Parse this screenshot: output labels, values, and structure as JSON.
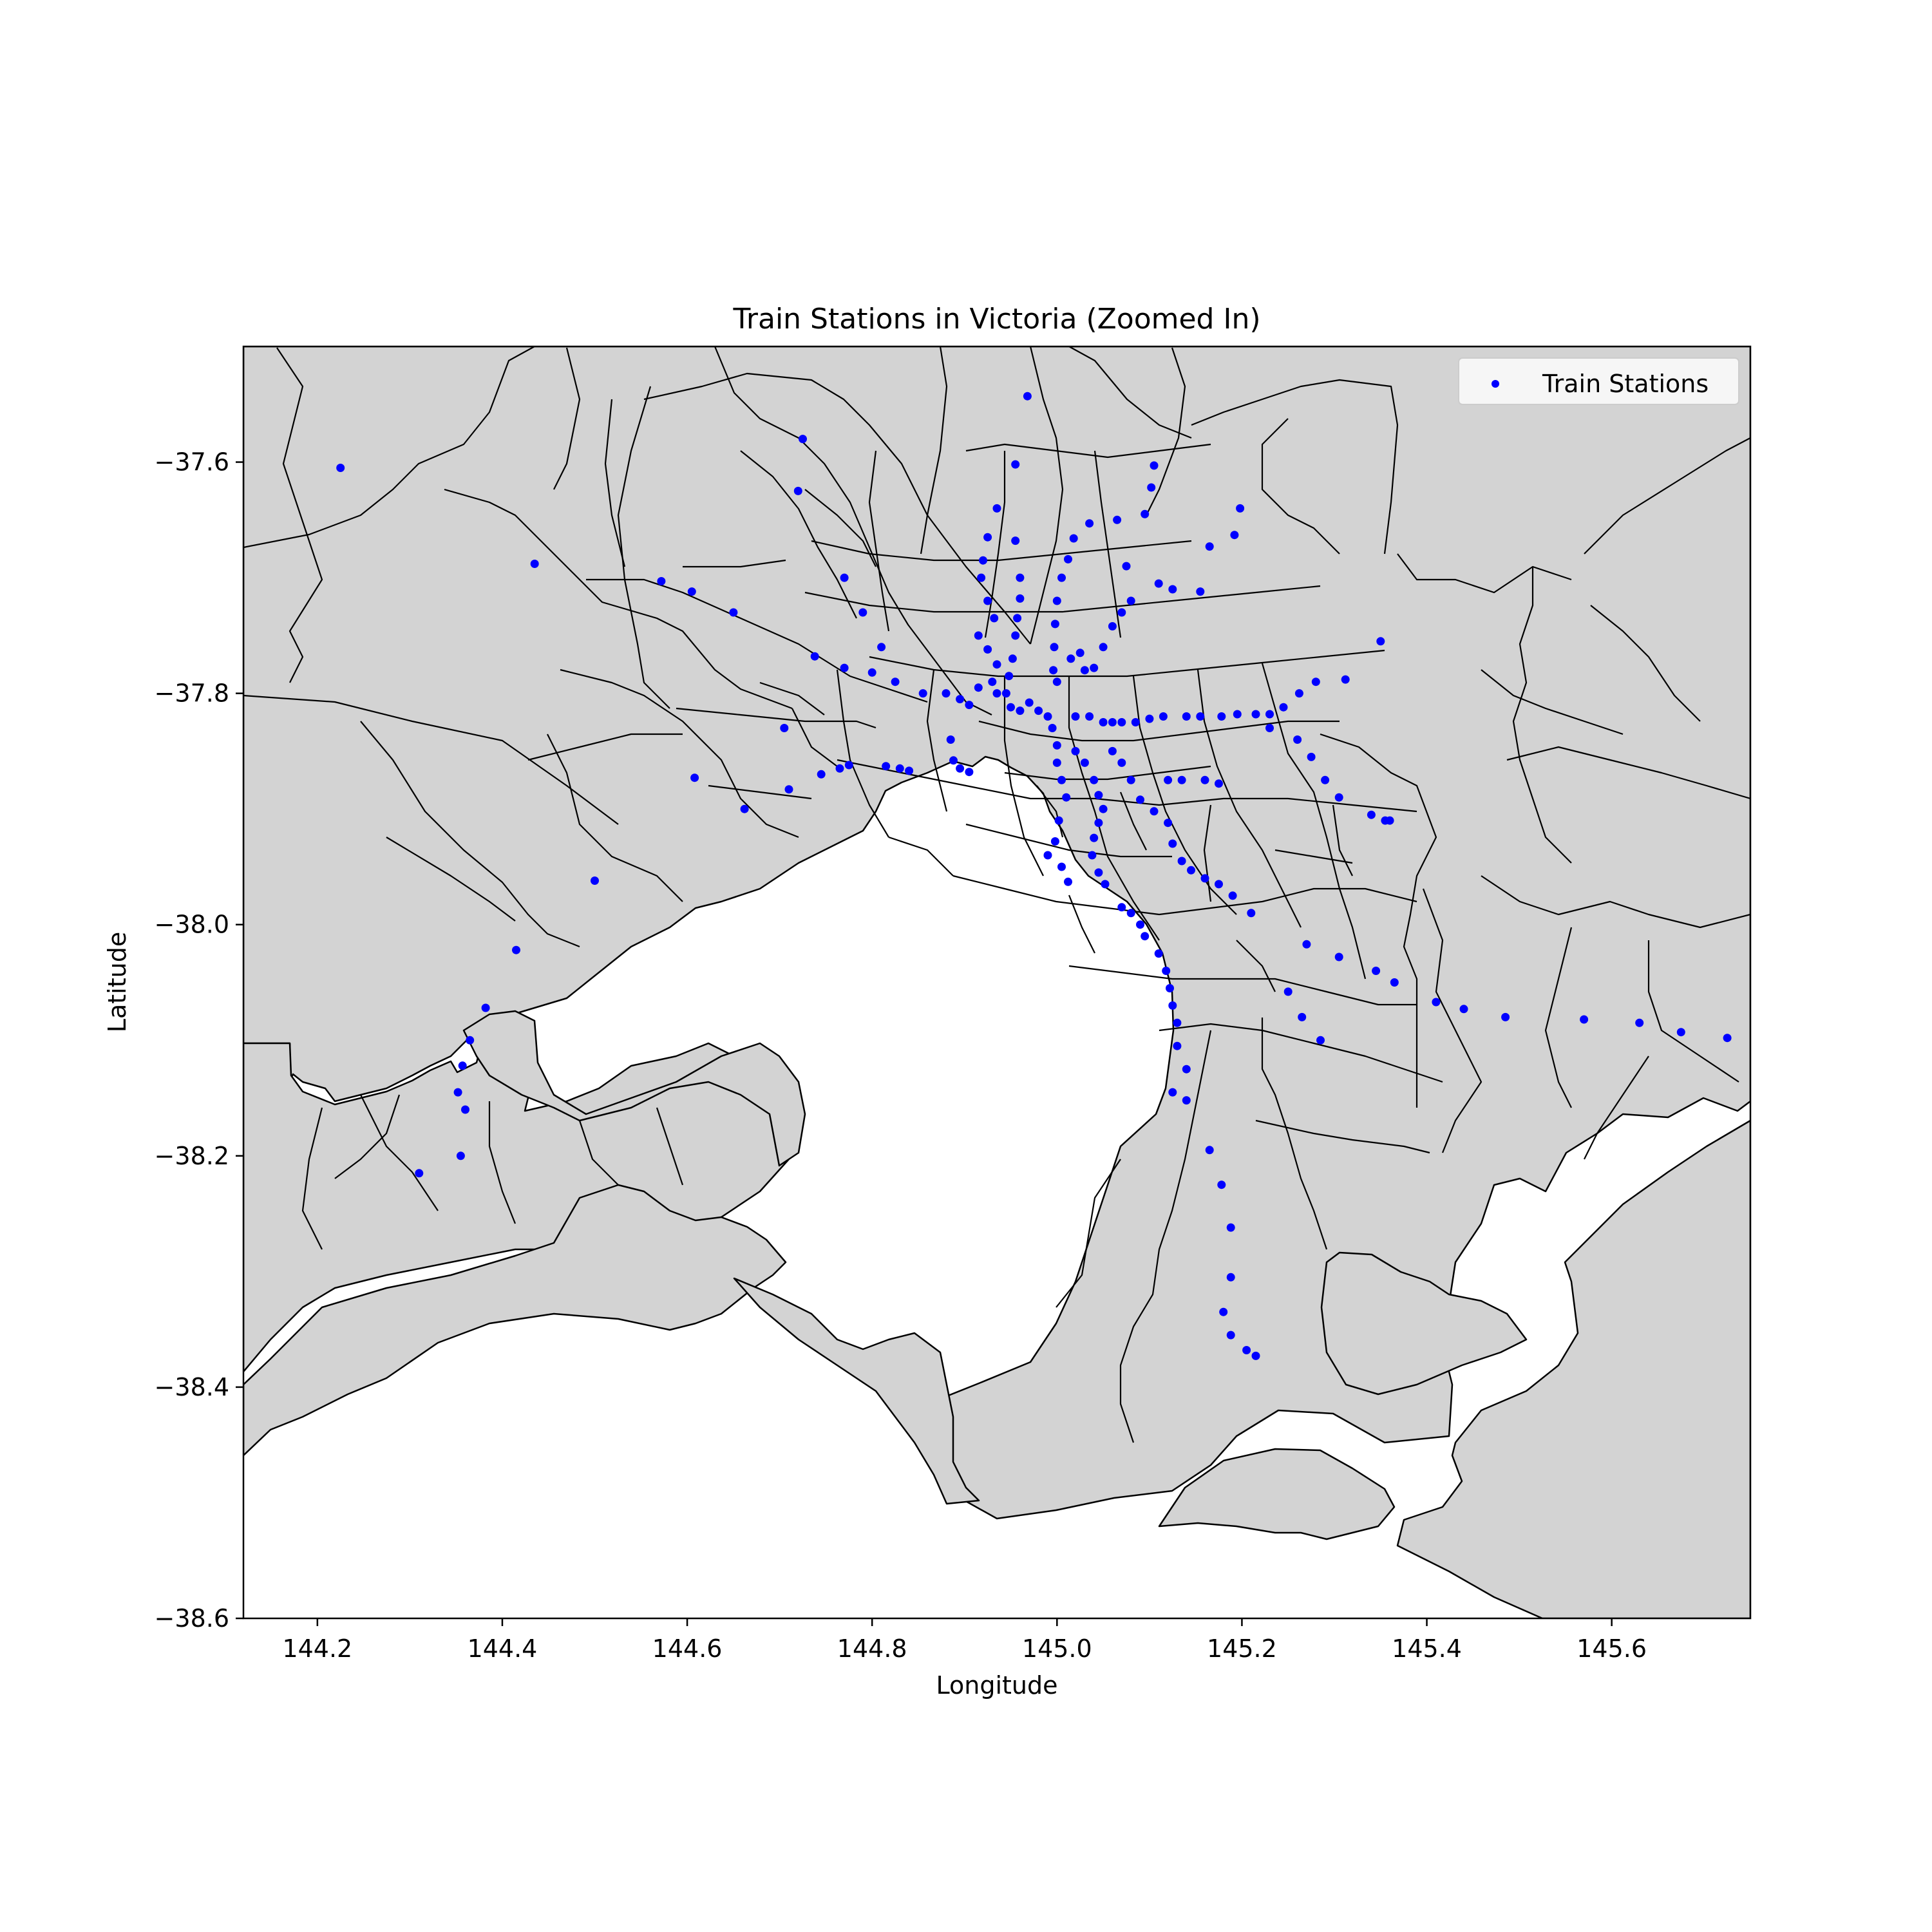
{
  "chart_data": {
    "type": "scatter",
    "title": "Train Stations in Victoria (Zoomed In)",
    "xlabel": "Longitude",
    "ylabel": "Latitude",
    "xlim": [
      144.12,
      145.75
    ],
    "ylim": [
      -38.6,
      -37.5
    ],
    "xticks": [
      144.2,
      144.4,
      144.6,
      144.8,
      145.0,
      145.2,
      145.4,
      145.6
    ],
    "xtick_labels": [
      "144.2",
      "144.4",
      "144.6",
      "144.8",
      "145.0",
      "145.2",
      "145.4",
      "145.6"
    ],
    "yticks": [
      -37.6,
      -37.8,
      -38.0,
      -38.2,
      -38.4,
      -38.6
    ],
    "ytick_labels": [
      "−37.6",
      "−37.8",
      "−38.0",
      "−38.2",
      "−38.4",
      "−38.6"
    ],
    "grid": false,
    "legend_position": "upper right",
    "land_color": "#d3d3d3",
    "boundary_color": "#000000",
    "series": [
      {
        "name": "Train Stations",
        "color": "#0000ff",
        "points": [
          [
            144.225,
            -37.605
          ],
          [
            144.435,
            -37.688
          ],
          [
            144.572,
            -37.703
          ],
          [
            144.605,
            -37.712
          ],
          [
            144.65,
            -37.73
          ],
          [
            144.725,
            -37.58
          ],
          [
            144.72,
            -37.625
          ],
          [
            144.77,
            -37.7
          ],
          [
            144.79,
            -37.73
          ],
          [
            144.738,
            -37.768
          ],
          [
            144.77,
            -37.778
          ],
          [
            144.8,
            -37.782
          ],
          [
            144.81,
            -37.76
          ],
          [
            144.825,
            -37.79
          ],
          [
            144.855,
            -37.8
          ],
          [
            144.88,
            -37.8
          ],
          [
            144.895,
            -37.805
          ],
          [
            144.905,
            -37.81
          ],
          [
            144.915,
            -37.795
          ],
          [
            144.935,
            -37.8
          ],
          [
            144.95,
            -37.812
          ],
          [
            144.96,
            -37.815
          ],
          [
            144.97,
            -37.808
          ],
          [
            144.98,
            -37.815
          ],
          [
            144.99,
            -37.82
          ],
          [
            144.705,
            -37.83
          ],
          [
            144.608,
            -37.873
          ],
          [
            144.662,
            -37.9
          ],
          [
            144.71,
            -37.883
          ],
          [
            144.745,
            -37.87
          ],
          [
            144.765,
            -37.865
          ],
          [
            144.775,
            -37.862
          ],
          [
            144.815,
            -37.863
          ],
          [
            144.83,
            -37.865
          ],
          [
            144.84,
            -37.867
          ],
          [
            144.885,
            -37.84
          ],
          [
            144.888,
            -37.858
          ],
          [
            144.895,
            -37.865
          ],
          [
            144.905,
            -37.868
          ],
          [
            144.5,
            -37.962
          ],
          [
            144.415,
            -38.022
          ],
          [
            144.382,
            -38.072
          ],
          [
            144.365,
            -38.1
          ],
          [
            144.357,
            -38.122
          ],
          [
            144.352,
            -38.145
          ],
          [
            144.36,
            -38.16
          ],
          [
            144.355,
            -38.2
          ],
          [
            144.31,
            -38.215
          ],
          [
            144.968,
            -37.543
          ],
          [
            144.955,
            -37.602
          ],
          [
            144.935,
            -37.64
          ],
          [
            144.955,
            -37.668
          ],
          [
            144.925,
            -37.665
          ],
          [
            144.92,
            -37.685
          ],
          [
            144.918,
            -37.7
          ],
          [
            144.925,
            -37.72
          ],
          [
            144.932,
            -37.735
          ],
          [
            144.915,
            -37.75
          ],
          [
            144.925,
            -37.762
          ],
          [
            144.935,
            -37.775
          ],
          [
            144.93,
            -37.79
          ],
          [
            144.96,
            -37.7
          ],
          [
            144.96,
            -37.718
          ],
          [
            144.957,
            -37.735
          ],
          [
            144.955,
            -37.75
          ],
          [
            144.952,
            -37.77
          ],
          [
            144.948,
            -37.785
          ],
          [
            144.945,
            -37.8
          ],
          [
            145.018,
            -37.666
          ],
          [
            145.012,
            -37.684
          ],
          [
            145.005,
            -37.7
          ],
          [
            145.0,
            -37.72
          ],
          [
            144.998,
            -37.74
          ],
          [
            144.997,
            -37.76
          ],
          [
            144.996,
            -37.78
          ],
          [
            145.0,
            -37.79
          ],
          [
            145.015,
            -37.77
          ],
          [
            145.025,
            -37.765
          ],
          [
            145.04,
            -37.778
          ],
          [
            145.035,
            -37.653
          ],
          [
            145.065,
            -37.65
          ],
          [
            145.095,
            -37.645
          ],
          [
            145.102,
            -37.622
          ],
          [
            145.105,
            -37.603
          ],
          [
            145.075,
            -37.69
          ],
          [
            145.11,
            -37.705
          ],
          [
            145.125,
            -37.71
          ],
          [
            145.155,
            -37.712
          ],
          [
            145.165,
            -37.673
          ],
          [
            145.192,
            -37.663
          ],
          [
            145.198,
            -37.64
          ],
          [
            145.06,
            -37.742
          ],
          [
            145.07,
            -37.73
          ],
          [
            145.08,
            -37.72
          ],
          [
            145.05,
            -37.76
          ],
          [
            145.03,
            -37.78
          ],
          [
            145.02,
            -37.82
          ],
          [
            145.035,
            -37.82
          ],
          [
            145.05,
            -37.825
          ],
          [
            145.06,
            -37.825
          ],
          [
            145.07,
            -37.825
          ],
          [
            145.085,
            -37.825
          ],
          [
            145.1,
            -37.822
          ],
          [
            145.115,
            -37.82
          ],
          [
            145.14,
            -37.82
          ],
          [
            145.155,
            -37.82
          ],
          [
            145.178,
            -37.82
          ],
          [
            145.195,
            -37.818
          ],
          [
            145.215,
            -37.818
          ],
          [
            145.23,
            -37.818
          ],
          [
            145.245,
            -37.812
          ],
          [
            145.262,
            -37.8
          ],
          [
            145.28,
            -37.79
          ],
          [
            145.312,
            -37.788
          ],
          [
            145.35,
            -37.755
          ],
          [
            145.26,
            -37.84
          ],
          [
            145.275,
            -37.855
          ],
          [
            145.29,
            -37.875
          ],
          [
            145.305,
            -37.89
          ],
          [
            145.34,
            -37.905
          ],
          [
            145.355,
            -37.91
          ],
          [
            145.36,
            -37.91
          ],
          [
            145.23,
            -37.83
          ],
          [
            145.12,
            -37.875
          ],
          [
            145.135,
            -37.875
          ],
          [
            145.16,
            -37.875
          ],
          [
            145.175,
            -37.878
          ],
          [
            144.995,
            -37.83
          ],
          [
            145.0,
            -37.845
          ],
          [
            145.0,
            -37.86
          ],
          [
            145.005,
            -37.875
          ],
          [
            145.01,
            -37.89
          ],
          [
            145.002,
            -37.91
          ],
          [
            144.998,
            -37.928
          ],
          [
            144.99,
            -37.94
          ],
          [
            145.005,
            -37.95
          ],
          [
            145.012,
            -37.963
          ],
          [
            145.02,
            -37.85
          ],
          [
            145.03,
            -37.86
          ],
          [
            145.04,
            -37.875
          ],
          [
            145.045,
            -37.888
          ],
          [
            145.05,
            -37.9
          ],
          [
            145.045,
            -37.912
          ],
          [
            145.04,
            -37.925
          ],
          [
            145.038,
            -37.94
          ],
          [
            145.045,
            -37.955
          ],
          [
            145.052,
            -37.965
          ],
          [
            145.06,
            -37.85
          ],
          [
            145.07,
            -37.86
          ],
          [
            145.08,
            -37.875
          ],
          [
            145.09,
            -37.892
          ],
          [
            145.105,
            -37.902
          ],
          [
            145.12,
            -37.912
          ],
          [
            145.125,
            -37.93
          ],
          [
            145.135,
            -37.945
          ],
          [
            145.145,
            -37.953
          ],
          [
            145.16,
            -37.96
          ],
          [
            145.175,
            -37.965
          ],
          [
            145.19,
            -37.975
          ],
          [
            145.21,
            -37.99
          ],
          [
            145.07,
            -37.985
          ],
          [
            145.08,
            -37.99
          ],
          [
            145.09,
            -38.0
          ],
          [
            145.095,
            -38.01
          ],
          [
            145.11,
            -38.025
          ],
          [
            145.118,
            -38.04
          ],
          [
            145.122,
            -38.055
          ],
          [
            145.125,
            -38.07
          ],
          [
            145.13,
            -38.085
          ],
          [
            145.13,
            -38.105
          ],
          [
            145.14,
            -38.125
          ],
          [
            145.125,
            -38.145
          ],
          [
            145.14,
            -38.152
          ],
          [
            145.165,
            -38.195
          ],
          [
            145.178,
            -38.225
          ],
          [
            145.188,
            -38.262
          ],
          [
            145.188,
            -38.305
          ],
          [
            145.18,
            -38.335
          ],
          [
            145.188,
            -38.355
          ],
          [
            145.205,
            -38.368
          ],
          [
            145.215,
            -38.373
          ],
          [
            145.27,
            -38.017
          ],
          [
            145.25,
            -38.058
          ],
          [
            145.265,
            -38.08
          ],
          [
            145.285,
            -38.1
          ],
          [
            145.305,
            -38.028
          ],
          [
            145.345,
            -38.04
          ],
          [
            145.365,
            -38.05
          ],
          [
            145.41,
            -38.067
          ],
          [
            145.44,
            -38.073
          ],
          [
            145.485,
            -38.08
          ],
          [
            145.57,
            -38.082
          ],
          [
            145.63,
            -38.085
          ],
          [
            145.675,
            -38.093
          ],
          [
            145.725,
            -38.098
          ]
        ]
      }
    ]
  }
}
